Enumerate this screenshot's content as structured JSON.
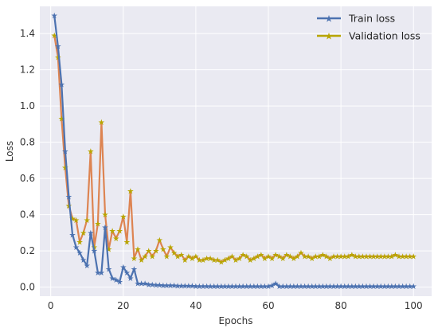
{
  "chart_data": {
    "type": "line",
    "title": "",
    "xlabel": "Epochs",
    "ylabel": "Loss",
    "xlim": [
      -3,
      105
    ],
    "ylim": [
      -0.05,
      1.55
    ],
    "xticks": [
      0,
      20,
      40,
      60,
      80,
      100
    ],
    "yticks": [
      0.0,
      0.2,
      0.4,
      0.6,
      0.8,
      1.0,
      1.2,
      1.4
    ],
    "xtick_labels": [
      "0",
      "20",
      "40",
      "60",
      "80",
      "100"
    ],
    "ytick_labels": [
      "0.0",
      "0.2",
      "0.4",
      "0.6",
      "0.8",
      "1.0",
      "1.2",
      "1.4"
    ],
    "grid": true,
    "legend_position": "top-right",
    "x": [
      1,
      2,
      3,
      4,
      5,
      6,
      7,
      8,
      9,
      10,
      11,
      12,
      13,
      14,
      15,
      16,
      17,
      18,
      19,
      20,
      21,
      22,
      23,
      24,
      25,
      26,
      27,
      28,
      29,
      30,
      31,
      32,
      33,
      34,
      35,
      36,
      37,
      38,
      39,
      40,
      41,
      42,
      43,
      44,
      45,
      46,
      47,
      48,
      49,
      50,
      51,
      52,
      53,
      54,
      55,
      56,
      57,
      58,
      59,
      60,
      61,
      62,
      63,
      64,
      65,
      66,
      67,
      68,
      69,
      70,
      71,
      72,
      73,
      74,
      75,
      76,
      77,
      78,
      79,
      80,
      81,
      82,
      83,
      84,
      85,
      86,
      87,
      88,
      89,
      90,
      91,
      92,
      93,
      94,
      95,
      96,
      97,
      98,
      99,
      100
    ],
    "series": [
      {
        "name": "Train loss",
        "color": "#4c72b0",
        "values": [
          1.5,
          1.33,
          1.12,
          0.75,
          0.5,
          0.29,
          0.22,
          0.19,
          0.15,
          0.12,
          0.3,
          0.2,
          0.08,
          0.08,
          0.33,
          0.1,
          0.05,
          0.04,
          0.03,
          0.11,
          0.08,
          0.05,
          0.1,
          0.02,
          0.02,
          0.02,
          0.015,
          0.015,
          0.012,
          0.012,
          0.01,
          0.01,
          0.01,
          0.01,
          0.008,
          0.008,
          0.008,
          0.007,
          0.007,
          0.006,
          0.006,
          0.006,
          0.006,
          0.005,
          0.005,
          0.005,
          0.005,
          0.005,
          0.005,
          0.005,
          0.005,
          0.005,
          0.005,
          0.005,
          0.005,
          0.005,
          0.005,
          0.005,
          0.005,
          0.005,
          0.01,
          0.02,
          0.005,
          0.005,
          0.005,
          0.005,
          0.005,
          0.005,
          0.005,
          0.005,
          0.005,
          0.005,
          0.005,
          0.005,
          0.005,
          0.005,
          0.005,
          0.005,
          0.005,
          0.005,
          0.005,
          0.005,
          0.005,
          0.005,
          0.005,
          0.005,
          0.005,
          0.005,
          0.005,
          0.005,
          0.005,
          0.005,
          0.005,
          0.005,
          0.005,
          0.005,
          0.005,
          0.005,
          0.005,
          0.005
        ]
      },
      {
        "name": "Validation loss",
        "color": "#b8a500",
        "line_color": "#dd8452",
        "values": [
          1.39,
          1.27,
          0.93,
          0.66,
          0.45,
          0.38,
          0.37,
          0.25,
          0.3,
          0.37,
          0.75,
          0.22,
          0.35,
          0.91,
          0.4,
          0.21,
          0.31,
          0.27,
          0.31,
          0.39,
          0.25,
          0.53,
          0.16,
          0.21,
          0.15,
          0.17,
          0.2,
          0.17,
          0.2,
          0.26,
          0.21,
          0.17,
          0.22,
          0.19,
          0.17,
          0.18,
          0.15,
          0.17,
          0.16,
          0.17,
          0.15,
          0.15,
          0.16,
          0.16,
          0.15,
          0.15,
          0.14,
          0.15,
          0.16,
          0.17,
          0.15,
          0.16,
          0.18,
          0.17,
          0.15,
          0.16,
          0.17,
          0.18,
          0.16,
          0.17,
          0.16,
          0.18,
          0.17,
          0.16,
          0.18,
          0.17,
          0.16,
          0.17,
          0.19,
          0.17,
          0.17,
          0.16,
          0.17,
          0.17,
          0.18,
          0.17,
          0.16,
          0.17,
          0.17,
          0.17,
          0.17,
          0.17,
          0.18,
          0.17,
          0.17,
          0.17,
          0.17,
          0.17,
          0.17,
          0.17,
          0.17,
          0.17,
          0.17,
          0.17,
          0.18,
          0.17,
          0.17,
          0.17,
          0.17,
          0.17
        ]
      }
    ]
  }
}
